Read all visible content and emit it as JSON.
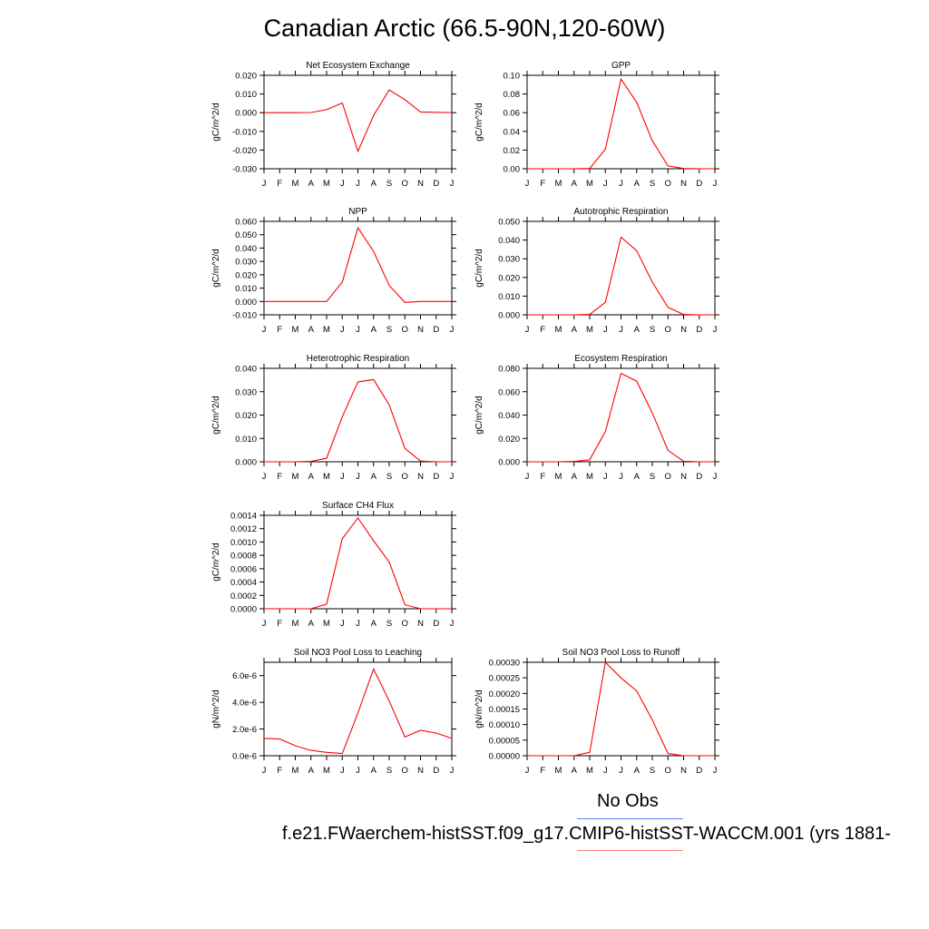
{
  "figure": {
    "title": "Canadian Arctic (66.5-90N,120-60W)",
    "months": [
      "J",
      "F",
      "M",
      "A",
      "M",
      "J",
      "J",
      "A",
      "S",
      "O",
      "N",
      "D",
      "J"
    ],
    "line_color": "#ff0000"
  },
  "legend": {
    "obs_label": "No Obs",
    "obs_color": "#6a7cff",
    "model_label": "f.e21.FWaerchem-histSST.f09_g17.CMIP6-histSST-WACCM.001 (yrs 1881-",
    "model_color": "#ff8080"
  },
  "chart_data": [
    {
      "type": "line",
      "title": "Net Ecosystem Exchange",
      "ylabel": "gC/m^2/d",
      "ylim": [
        -0.03,
        0.02
      ],
      "yticks": [
        "0.020",
        "0.010",
        "0.000",
        "-0.010",
        "-0.020",
        "-0.030"
      ],
      "values": [
        0.0,
        0.0,
        0.0,
        0.0001,
        0.0016,
        0.0052,
        -0.0207,
        -0.0015,
        0.0122,
        0.007,
        0.0004,
        0.0002,
        0.0001
      ]
    },
    {
      "type": "line",
      "title": "GPP",
      "ylabel": "gC/m^2/d",
      "ylim": [
        0,
        0.1
      ],
      "yticks": [
        "0.10",
        "0.08",
        "0.06",
        "0.04",
        "0.02",
        "0.00"
      ],
      "values": [
        0,
        0,
        0,
        0,
        0.0003,
        0.021,
        0.096,
        0.071,
        0.03,
        0.003,
        0.0003,
        0,
        0
      ]
    },
    {
      "type": "line",
      "title": "NPP",
      "ylabel": "gC/m^2/d",
      "ylim": [
        -0.01,
        0.06
      ],
      "yticks": [
        "0.060",
        "0.050",
        "0.040",
        "0.030",
        "0.020",
        "0.010",
        "0.000",
        "-0.010"
      ],
      "values": [
        0,
        0,
        0,
        0,
        0,
        0.0145,
        0.0552,
        0.0375,
        0.012,
        -0.0007,
        0,
        0,
        0
      ]
    },
    {
      "type": "line",
      "title": "Autotrophic Respiration",
      "ylabel": "gC/m^2/d",
      "ylim": [
        0,
        0.05
      ],
      "yticks": [
        "0.050",
        "0.040",
        "0.030",
        "0.020",
        "0.010",
        "0.000"
      ],
      "values": [
        0,
        0,
        0,
        0,
        0.0002,
        0.0067,
        0.0415,
        0.0343,
        0.0175,
        0.004,
        0.0002,
        0,
        0
      ]
    },
    {
      "type": "line",
      "title": "Heterotrophic Respiration",
      "ylabel": "gC/m^2/d",
      "ylim": [
        0,
        0.04
      ],
      "yticks": [
        "0.040",
        "0.030",
        "0.020",
        "0.010",
        "0.000"
      ],
      "values": [
        0,
        0,
        0,
        0.0002,
        0.0015,
        0.0193,
        0.0342,
        0.0352,
        0.0244,
        0.0057,
        0.0003,
        0,
        0
      ]
    },
    {
      "type": "line",
      "title": "Ecosystem Respiration",
      "ylabel": "gC/m^2/d",
      "ylim": [
        0,
        0.08
      ],
      "yticks": [
        "0.080",
        "0.060",
        "0.040",
        "0.020",
        "0.000"
      ],
      "values": [
        0,
        0,
        0,
        0.0003,
        0.0017,
        0.026,
        0.0757,
        0.069,
        0.0418,
        0.0098,
        0.0005,
        0,
        0
      ]
    },
    {
      "type": "line",
      "title": "Surface CH4 Flux",
      "ylabel": "gC/m^2/d",
      "ylim": [
        0,
        0.0014
      ],
      "yticks": [
        "0.0014",
        "0.0012",
        "0.0010",
        "0.0008",
        "0.0006",
        "0.0004",
        "0.0002",
        "0.0000"
      ],
      "values": [
        0,
        0,
        0,
        0,
        7e-05,
        0.00105,
        0.00136,
        0.00102,
        0.0007,
        6e-05,
        0,
        0,
        0
      ]
    },
    null,
    {
      "type": "line",
      "title": "Soil NO3 Pool Loss to Leaching",
      "ylabel": "gN/m^2/d",
      "ylim": [
        0,
        7e-06
      ],
      "yticks": [
        "6.0e-6",
        "4.0e-6",
        "2.0e-6",
        "0.0e-6"
      ],
      "ytick_values": [
        6e-06,
        4e-06,
        2e-06,
        0
      ],
      "values": [
        1.3e-06,
        1.25e-06,
        7.5e-07,
        4e-07,
        2.5e-07,
        1.6e-07,
        3.2e-06,
        6.5e-06,
        4.1e-06,
        1.4e-06,
        1.9e-06,
        1.7e-06,
        1.3e-06
      ]
    },
    {
      "type": "line",
      "title": "Soil NO3 Pool Loss to Runoff",
      "ylabel": "gN/m^2/d",
      "ylim": [
        0,
        0.0003
      ],
      "yticks": [
        "0.00030",
        "0.00025",
        "0.00020",
        "0.00015",
        "0.00010",
        "0.00005",
        "0.00000"
      ],
      "values": [
        0,
        0,
        0,
        0,
        1.1e-05,
        0.0003,
        0.00025,
        0.000208,
        0.000115,
        7e-06,
        0,
        0,
        0
      ]
    }
  ]
}
